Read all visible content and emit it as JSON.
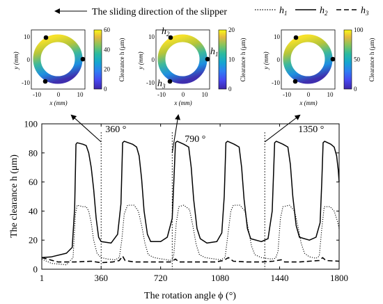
{
  "header": {
    "direction_text": "The sliding direction of the slipper",
    "legend": [
      {
        "label": "h",
        "sub": "1",
        "style": "dotted"
      },
      {
        "label": "h",
        "sub": "2",
        "style": "solid"
      },
      {
        "label": "h",
        "sub": "3",
        "style": "dashed"
      }
    ]
  },
  "insets": [
    {
      "x_label": "x (mm)",
      "y_label": "y (mm)",
      "x_ticks": [
        "-10",
        "0",
        "10"
      ],
      "y_ticks": [
        "10",
        "0",
        "-10"
      ],
      "colorbar_label": "Clearance h (μm)",
      "colorbar_ticks": [
        "60",
        "40",
        "20",
        "0"
      ],
      "colorbar_values": [
        60,
        40,
        20,
        0
      ],
      "colorbar_max": 60,
      "point_labels": []
    },
    {
      "x_label": "x (mm)",
      "y_label": "y (mm)",
      "x_ticks": [
        "-10",
        "0",
        "10"
      ],
      "y_ticks": [
        "10",
        "0",
        "-10"
      ],
      "colorbar_label": "Clearance h (μm)",
      "colorbar_ticks": [
        "20",
        "10",
        "0"
      ],
      "colorbar_values": [
        20,
        10,
        0
      ],
      "colorbar_max": 20,
      "point_labels": [
        {
          "text": "h",
          "sub": "2",
          "at": "h2"
        },
        {
          "text": "h",
          "sub": "1",
          "at": "h1"
        },
        {
          "text": "h",
          "sub": "3",
          "at": "h3"
        }
      ]
    },
    {
      "x_label": "x (mm)",
      "y_label": "y (mm)",
      "x_ticks": [
        "-10",
        "0",
        "10"
      ],
      "y_ticks": [
        "10",
        "0",
        "-10"
      ],
      "colorbar_label": "Clearance h (μm)",
      "colorbar_ticks": [
        "100",
        "50",
        "0"
      ],
      "colorbar_values": [
        100,
        50,
        0
      ],
      "colorbar_max": 100,
      "point_labels": []
    }
  ],
  "annotations": [
    {
      "text": "360 °",
      "angle": 360
    },
    {
      "text": "790 °",
      "angle": 790
    },
    {
      "text": "1350 °",
      "angle": 1350
    }
  ],
  "chart_data": {
    "type": "line",
    "xlabel": "The rotation angle ϕ (°)",
    "ylabel": "The clearance h (μm)",
    "xlim": [
      1,
      1800
    ],
    "ylim": [
      0,
      100
    ],
    "x_ticks": [
      1,
      360,
      720,
      1080,
      1440,
      1800
    ],
    "y_ticks": [
      0,
      20,
      40,
      60,
      80,
      100
    ],
    "series": [
      {
        "name": "h1",
        "style": "dotted",
        "points": [
          [
            1,
            7
          ],
          [
            60,
            4
          ],
          [
            150,
            3
          ],
          [
            190,
            8
          ],
          [
            205,
            38
          ],
          [
            215,
            44
          ],
          [
            250,
            43
          ],
          [
            270,
            43
          ],
          [
            285,
            40
          ],
          [
            300,
            32
          ],
          [
            315,
            20
          ],
          [
            335,
            11
          ],
          [
            360,
            8
          ],
          [
            400,
            7
          ],
          [
            445,
            6.5
          ],
          [
            470,
            8
          ],
          [
            485,
            20
          ],
          [
            500,
            38
          ],
          [
            520,
            44
          ],
          [
            560,
            44
          ],
          [
            585,
            40
          ],
          [
            605,
            30
          ],
          [
            625,
            18
          ],
          [
            645,
            10
          ],
          [
            680,
            8
          ],
          [
            730,
            7
          ],
          [
            760,
            6.5
          ],
          [
            775,
            6
          ],
          [
            790,
            6.5
          ],
          [
            800,
            10
          ],
          [
            815,
            32
          ],
          [
            830,
            43
          ],
          [
            860,
            44
          ],
          [
            895,
            41
          ],
          [
            915,
            30
          ],
          [
            935,
            17
          ],
          [
            955,
            10
          ],
          [
            990,
            8
          ],
          [
            1050,
            7
          ],
          [
            1085,
            6.5
          ],
          [
            1110,
            8
          ],
          [
            1125,
            22
          ],
          [
            1145,
            40
          ],
          [
            1160,
            44
          ],
          [
            1200,
            44
          ],
          [
            1230,
            40
          ],
          [
            1250,
            28
          ],
          [
            1270,
            16
          ],
          [
            1290,
            10
          ],
          [
            1330,
            8
          ],
          [
            1390,
            7
          ],
          [
            1415,
            7.5
          ],
          [
            1430,
            12
          ],
          [
            1445,
            35
          ],
          [
            1460,
            43
          ],
          [
            1500,
            44
          ],
          [
            1530,
            40
          ],
          [
            1550,
            30
          ],
          [
            1570,
            18
          ],
          [
            1590,
            11
          ],
          [
            1620,
            8.5
          ],
          [
            1660,
            7.5
          ],
          [
            1680,
            9
          ],
          [
            1695,
            28
          ],
          [
            1710,
            43
          ],
          [
            1745,
            43
          ],
          [
            1770,
            40
          ],
          [
            1790,
            33
          ],
          [
            1800,
            28
          ]
        ]
      },
      {
        "name": "h2",
        "style": "solid",
        "points": [
          [
            1,
            8
          ],
          [
            60,
            8.5
          ],
          [
            150,
            11
          ],
          [
            185,
            15
          ],
          [
            200,
            42
          ],
          [
            208,
            86
          ],
          [
            215,
            87
          ],
          [
            250,
            86
          ],
          [
            270,
            85
          ],
          [
            285,
            80
          ],
          [
            300,
            70
          ],
          [
            315,
            55
          ],
          [
            330,
            35
          ],
          [
            345,
            22
          ],
          [
            360,
            19
          ],
          [
            420,
            18
          ],
          [
            460,
            24
          ],
          [
            480,
            45
          ],
          [
            490,
            87
          ],
          [
            500,
            88
          ],
          [
            550,
            86
          ],
          [
            575,
            84
          ],
          [
            590,
            78
          ],
          [
            605,
            62
          ],
          [
            620,
            40
          ],
          [
            640,
            24
          ],
          [
            660,
            19
          ],
          [
            720,
            19
          ],
          [
            760,
            22
          ],
          [
            790,
            35
          ],
          [
            800,
            60
          ],
          [
            810,
            87
          ],
          [
            820,
            88
          ],
          [
            860,
            86
          ],
          [
            890,
            84
          ],
          [
            905,
            70
          ],
          [
            920,
            48
          ],
          [
            940,
            28
          ],
          [
            960,
            21
          ],
          [
            1000,
            18
          ],
          [
            1060,
            19
          ],
          [
            1090,
            25
          ],
          [
            1105,
            50
          ],
          [
            1115,
            87
          ],
          [
            1125,
            88
          ],
          [
            1165,
            86
          ],
          [
            1195,
            84
          ],
          [
            1210,
            70
          ],
          [
            1225,
            48
          ],
          [
            1245,
            28
          ],
          [
            1265,
            21
          ],
          [
            1330,
            19
          ],
          [
            1370,
            21
          ],
          [
            1395,
            40
          ],
          [
            1410,
            87
          ],
          [
            1420,
            88
          ],
          [
            1460,
            86
          ],
          [
            1490,
            84
          ],
          [
            1505,
            72
          ],
          [
            1520,
            50
          ],
          [
            1540,
            30
          ],
          [
            1560,
            22
          ],
          [
            1620,
            20
          ],
          [
            1660,
            22
          ],
          [
            1685,
            32
          ],
          [
            1695,
            60
          ],
          [
            1703,
            87
          ],
          [
            1712,
            88
          ],
          [
            1750,
            86
          ],
          [
            1770,
            84
          ],
          [
            1785,
            78
          ],
          [
            1795,
            68
          ],
          [
            1800,
            60
          ]
        ]
      },
      {
        "name": "h3",
        "style": "dashed",
        "points": [
          [
            1,
            8
          ],
          [
            100,
            5
          ],
          [
            200,
            5
          ],
          [
            300,
            5.5
          ],
          [
            360,
            4.5
          ],
          [
            430,
            5
          ],
          [
            470,
            6
          ],
          [
            490,
            9
          ],
          [
            505,
            6
          ],
          [
            560,
            5
          ],
          [
            620,
            5
          ],
          [
            720,
            5
          ],
          [
            780,
            5
          ],
          [
            810,
            7
          ],
          [
            830,
            5
          ],
          [
            900,
            5
          ],
          [
            980,
            5
          ],
          [
            1050,
            5
          ],
          [
            1100,
            6
          ],
          [
            1130,
            8
          ],
          [
            1160,
            5.5
          ],
          [
            1240,
            5
          ],
          [
            1330,
            5
          ],
          [
            1400,
            5.5
          ],
          [
            1450,
            6.5
          ],
          [
            1470,
            5
          ],
          [
            1560,
            5
          ],
          [
            1620,
            5.5
          ],
          [
            1680,
            6
          ],
          [
            1700,
            8
          ],
          [
            1720,
            6
          ],
          [
            1800,
            5.5
          ]
        ]
      }
    ]
  }
}
